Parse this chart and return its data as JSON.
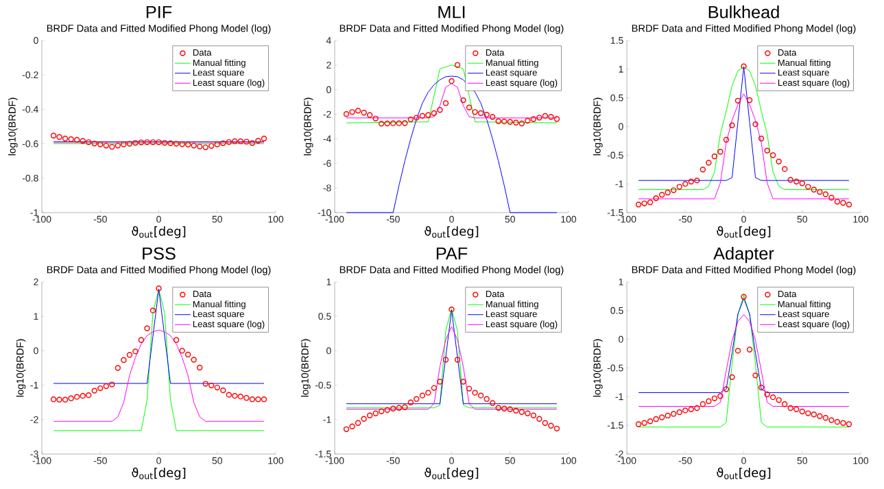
{
  "chart_data": [
    {
      "type": "line",
      "title": "PIF",
      "subtitle": "BRDF Data and Fitted Modified Phong Model (log)",
      "xlabel": "ϑ$_{out}$[deg]",
      "ylabel": "log10(BRDF)",
      "xlim": [
        -100,
        100
      ],
      "xticks": [
        -100,
        -50,
        0,
        50,
        100
      ],
      "ylim": [
        -1,
        0
      ],
      "yticks": [
        -1,
        -0.8,
        -0.6,
        -0.4,
        -0.2,
        0
      ],
      "legend": "top right",
      "series": [
        {
          "name": "Data",
          "type": "scatter",
          "marker": "circle",
          "color": "#ff0000",
          "x": [
            -90,
            -85,
            -80,
            -75,
            -70,
            -65,
            -60,
            -55,
            -50,
            -45,
            -40,
            -35,
            -30,
            -25,
            -20,
            -15,
            -10,
            -5,
            0,
            5,
            10,
            15,
            20,
            25,
            30,
            35,
            40,
            45,
            50,
            55,
            60,
            65,
            70,
            75,
            80,
            85,
            90
          ],
          "values": [
            -0.553,
            -0.561,
            -0.57,
            -0.574,
            -0.578,
            -0.584,
            -0.591,
            -0.599,
            -0.604,
            -0.611,
            -0.618,
            -0.611,
            -0.604,
            -0.6,
            -0.595,
            -0.592,
            -0.591,
            -0.591,
            -0.591,
            -0.595,
            -0.597,
            -0.6,
            -0.603,
            -0.605,
            -0.611,
            -0.616,
            -0.621,
            -0.613,
            -0.604,
            -0.597,
            -0.59,
            -0.586,
            -0.586,
            -0.588,
            -0.596,
            -0.583,
            -0.57
          ]
        },
        {
          "name": "Manual fitting",
          "color": "#00ff00",
          "x": [
            -90,
            90
          ],
          "values": [
            -0.6,
            -0.6
          ]
        },
        {
          "name": "Least square",
          "color": "#0000ff",
          "x": [
            -90,
            90
          ],
          "values": [
            -0.589,
            -0.589
          ]
        },
        {
          "name": "Least square (log)",
          "color": "#ff00ff",
          "x": [
            -90,
            90
          ],
          "values": [
            -0.591,
            -0.591
          ]
        }
      ]
    },
    {
      "type": "line",
      "title": "MLI",
      "subtitle": "BRDF Data and Fitted Modified Phong Model (log)",
      "xlabel": "ϑ$_{out}$[deg]",
      "ylabel": "log10(BRDF)",
      "xlim": [
        -100,
        100
      ],
      "xticks": [
        -100,
        -50,
        0,
        50,
        100
      ],
      "ylim": [
        -10,
        4
      ],
      "yticks": [
        -10,
        -8,
        -6,
        -4,
        -2,
        0,
        2,
        4
      ],
      "legend": "top right",
      "series": [
        {
          "name": "Data",
          "type": "scatter",
          "marker": "circle",
          "color": "#ff0000",
          "x": [
            -90,
            -85,
            -80,
            -75,
            -70,
            -65,
            -60,
            -55,
            -50,
            -45,
            -40,
            -35,
            -30,
            -25,
            -20,
            -15,
            -10,
            -5,
            0,
            5,
            10,
            15,
            20,
            25,
            30,
            35,
            40,
            45,
            50,
            55,
            60,
            65,
            70,
            75,
            80,
            85,
            90
          ],
          "values": [
            -1.98,
            -1.82,
            -1.71,
            -1.87,
            -2.07,
            -2.35,
            -2.77,
            -2.75,
            -2.73,
            -2.73,
            -2.72,
            -2.42,
            -2.28,
            -2.13,
            -2.07,
            -1.91,
            -1.65,
            -1.1,
            0.7,
            2.0,
            -0.86,
            -1.45,
            -1.82,
            -1.91,
            -2.04,
            -2.22,
            -2.57,
            -2.59,
            -2.62,
            -2.68,
            -2.75,
            -2.53,
            -2.4,
            -2.28,
            -2.13,
            -2.22,
            -2.39
          ]
        },
        {
          "name": "Manual fitting",
          "color": "#00ff00",
          "x": [
            -90,
            -20,
            -15,
            -10,
            -5,
            0,
            5,
            10,
            15,
            20,
            90
          ],
          "values": [
            -2.7,
            -2.62,
            -0.5,
            1.7,
            1.85,
            2.0,
            1.85,
            1.7,
            -0.5,
            -2.62,
            -2.7
          ]
        },
        {
          "name": "Least square",
          "color": "#0000ff",
          "x": [
            -90,
            -50,
            -45,
            -40,
            -35,
            -30,
            -25,
            -20,
            -15,
            -10,
            -5,
            0,
            5,
            10,
            15,
            20,
            25,
            30,
            35,
            40,
            45,
            50,
            90
          ],
          "values": [
            -10,
            -10,
            -7.8,
            -5.8,
            -4.0,
            -2.4,
            -1.1,
            -0.2,
            0.4,
            0.8,
            1.05,
            1.1,
            1.05,
            0.8,
            null,
            -0.2,
            -1.1,
            -2.4,
            -4.0,
            -5.8,
            -7.8,
            -10,
            -10
          ]
        },
        {
          "name": "Least square (log)",
          "color": "#ff00ff",
          "x": [
            -90,
            -20,
            -15,
            -10,
            -5,
            0,
            5,
            10,
            15,
            20,
            90
          ],
          "values": [
            -2.3,
            -2.3,
            -2.2,
            -1.3,
            0.2,
            0.5,
            0.2,
            -1.3,
            -2.2,
            -2.3,
            -2.3
          ]
        }
      ]
    },
    {
      "type": "line",
      "title": "Bulkhead",
      "subtitle": "BRDF Data and Fitted Modified Phong Model (log)",
      "xlabel": "ϑ$_{out}$[deg]",
      "ylabel": "log10(BRDF)",
      "xlim": [
        -100,
        100
      ],
      "xticks": [
        -100,
        -50,
        0,
        50,
        100
      ],
      "ylim": [
        -1.5,
        1.5
      ],
      "yticks": [
        -1.5,
        -1,
        -0.5,
        0,
        0.5,
        1,
        1.5
      ],
      "legend": "top right",
      "series": [
        {
          "name": "Data",
          "type": "scatter",
          "marker": "circle",
          "color": "#ff0000",
          "x": [
            -90,
            -85,
            -80,
            -75,
            -70,
            -65,
            -60,
            -55,
            -50,
            -45,
            -40,
            -35,
            -30,
            -25,
            -20,
            -15,
            -10,
            -5,
            0,
            5,
            10,
            15,
            20,
            25,
            30,
            35,
            40,
            45,
            50,
            55,
            60,
            65,
            70,
            75,
            80,
            85,
            90
          ],
          "values": [
            -1.36,
            -1.34,
            -1.32,
            -1.25,
            -1.19,
            -1.15,
            -1.11,
            -1.05,
            -1.0,
            -0.96,
            -0.94,
            -0.75,
            -0.63,
            -0.52,
            -0.44,
            -0.23,
            0.02,
            0.45,
            1.05,
            0.46,
            0.04,
            -0.21,
            -0.42,
            -0.5,
            -0.61,
            -0.74,
            -0.93,
            -0.96,
            -0.99,
            -1.05,
            -1.1,
            -1.14,
            -1.18,
            -1.24,
            -1.31,
            -1.33,
            -1.36
          ]
        },
        {
          "name": "Manual fitting",
          "color": "#00ff00",
          "x": [
            -90,
            -35,
            -30,
            -25,
            -20,
            -15,
            -10,
            -5,
            0,
            5,
            10,
            15,
            20,
            25,
            30,
            35,
            90
          ],
          "values": [
            -1.1,
            -1.1,
            -1.04,
            -0.79,
            -0.13,
            0.27,
            0.71,
            0.97,
            1.04,
            0.97,
            0.71,
            0.27,
            -0.13,
            -0.79,
            -1.04,
            -1.1,
            -1.1
          ]
        },
        {
          "name": "Least square",
          "color": "#0000ff",
          "x": [
            -90,
            -15,
            -10,
            -5,
            0,
            5,
            10,
            15,
            90
          ],
          "values": [
            -0.94,
            -0.94,
            -0.89,
            0.08,
            1.04,
            0.08,
            -0.89,
            -0.94,
            -0.94
          ]
        },
        {
          "name": "Least square (log)",
          "color": "#ff00ff",
          "x": [
            -90,
            -25,
            -20,
            -15,
            -10,
            -5,
            0,
            5,
            10,
            15,
            20,
            25,
            90
          ],
          "values": [
            -1.26,
            -1.26,
            -0.98,
            -0.28,
            0.11,
            0.38,
            0.57,
            0.38,
            0.11,
            -0.28,
            -0.98,
            -1.26,
            -1.26
          ]
        }
      ]
    },
    {
      "type": "line",
      "title": "PSS",
      "subtitle": "BRDF Data and Fitted Modified Phong Model (log)",
      "xlabel": "ϑ$_{out}$[deg]",
      "ylabel": "log10(BRDF)",
      "xlim": [
        -100,
        100
      ],
      "xticks": [
        -100,
        -50,
        0,
        50,
        100
      ],
      "ylim": [
        -3,
        2
      ],
      "yticks": [
        -3,
        -2,
        -1,
        0,
        1,
        2
      ],
      "legend": "top right",
      "series": [
        {
          "name": "Data",
          "type": "scatter",
          "marker": "circle",
          "color": "#ff0000",
          "x": [
            -90,
            -85,
            -80,
            -75,
            -70,
            -65,
            -60,
            -55,
            -50,
            -45,
            -40,
            -35,
            -30,
            -25,
            -20,
            -15,
            -10,
            -5,
            0,
            5,
            10,
            15,
            20,
            25,
            30,
            35,
            40,
            45,
            50,
            55,
            60,
            65,
            70,
            75,
            80,
            85,
            90
          ],
          "values": [
            -1.41,
            -1.42,
            -1.42,
            -1.38,
            -1.34,
            -1.31,
            -1.29,
            -1.16,
            -1.09,
            -1.03,
            -0.98,
            -0.5,
            -0.27,
            -0.12,
            -0.02,
            0.31,
            0.65,
            1.17,
            1.81,
            null,
            null,
            0.31,
            0.0,
            -0.11,
            -0.26,
            -0.49,
            -0.96,
            -1.01,
            -1.07,
            -1.15,
            -1.28,
            -1.31,
            -1.33,
            -1.37,
            -1.41,
            -1.41,
            -1.41
          ]
        },
        {
          "name": "Manual fitting",
          "color": "#00ff00",
          "x": [
            -90,
            -15,
            -10,
            -5,
            0,
            5,
            10,
            15,
            90
          ],
          "values": [
            -2.32,
            -2.32,
            -1.43,
            1.1,
            1.79,
            1.1,
            -1.43,
            -2.32,
            -2.32
          ]
        },
        {
          "name": "Least square",
          "color": "#0000ff",
          "x": [
            -90,
            -10,
            -5,
            0,
            5,
            10,
            90
          ],
          "values": [
            -0.95,
            -0.95,
            0.42,
            1.79,
            0.42,
            -0.95,
            -0.95
          ]
        },
        {
          "name": "Least square (log)",
          "color": "#ff00ff",
          "x": [
            -90,
            -40,
            -35,
            -30,
            -25,
            -20,
            -15,
            -10,
            -5,
            0,
            5,
            10,
            15,
            20,
            25,
            30,
            35,
            40,
            90
          ],
          "values": [
            -2.05,
            -2.05,
            -1.92,
            -1.5,
            -0.72,
            -0.2,
            0.2,
            0.44,
            0.55,
            0.6,
            0.55,
            0.44,
            0.2,
            -0.2,
            -0.72,
            -1.5,
            -1.92,
            -2.05,
            -2.05
          ]
        }
      ]
    },
    {
      "type": "line",
      "title": "PAF",
      "subtitle": "BRDF Data and Fitted Modified Phong Model (log)",
      "xlabel": "ϑ$_{out}$[deg]",
      "ylabel": "log10(BRDF)",
      "xlim": [
        -100,
        100
      ],
      "xticks": [
        -100,
        -50,
        0,
        50,
        100
      ],
      "ylim": [
        -1.5,
        1
      ],
      "yticks": [
        -1.5,
        -1,
        -0.5,
        0,
        0.5,
        1
      ],
      "legend": "top right",
      "series": [
        {
          "name": "Data",
          "type": "scatter",
          "marker": "circle",
          "color": "#ff0000",
          "x": [
            -90,
            -85,
            -80,
            -75,
            -70,
            -65,
            -60,
            -55,
            -50,
            -45,
            -40,
            -35,
            -30,
            -25,
            -20,
            -15,
            -10,
            -5,
            0,
            5,
            10,
            15,
            20,
            25,
            30,
            35,
            40,
            45,
            50,
            55,
            60,
            65,
            70,
            75,
            80,
            85,
            90
          ],
          "values": [
            -1.14,
            -1.1,
            -1.05,
            -0.99,
            -0.94,
            -0.91,
            -0.88,
            -0.86,
            -0.84,
            -0.83,
            -0.82,
            -0.75,
            -0.7,
            -0.65,
            -0.61,
            -0.54,
            -0.45,
            -0.13,
            0.6,
            -0.13,
            -0.45,
            -0.55,
            -0.61,
            -0.65,
            -0.7,
            -0.76,
            -0.83,
            -0.84,
            -0.85,
            -0.87,
            -0.89,
            -0.91,
            -0.94,
            -0.99,
            -1.05,
            -1.09,
            -1.13
          ]
        },
        {
          "name": "Manual fitting",
          "color": "#00ff00",
          "x": [
            -90,
            -15,
            -10,
            -5,
            0,
            5,
            10,
            15,
            90
          ],
          "values": [
            -0.83,
            -0.83,
            -0.79,
            0.29,
            0.61,
            0.29,
            -0.79,
            -0.83,
            -0.83
          ]
        },
        {
          "name": "Least square",
          "color": "#0000ff",
          "x": [
            -90,
            -10,
            -5,
            0,
            5,
            10,
            90
          ],
          "values": [
            -0.77,
            -0.77,
            -0.09,
            0.59,
            -0.09,
            -0.77,
            -0.77
          ]
        },
        {
          "name": "Least square (log)",
          "color": "#ff00ff",
          "x": [
            -90,
            -20,
            -15,
            -10,
            -5,
            0,
            5,
            10,
            15,
            20,
            90
          ],
          "values": [
            -0.85,
            -0.85,
            -0.77,
            -0.23,
            0.16,
            0.35,
            0.16,
            -0.23,
            -0.77,
            -0.85,
            -0.85
          ]
        }
      ]
    },
    {
      "type": "line",
      "title": "Adapter",
      "subtitle": "BRDF Data and Fitted Modified Phong Model (log)",
      "xlabel": "ϑ$_{out}$[deg]",
      "ylabel": "log10(BRDF)",
      "xlim": [
        -100,
        100
      ],
      "xticks": [
        -100,
        -50,
        0,
        50,
        100
      ],
      "ylim": [
        -2,
        1
      ],
      "yticks": [
        -2,
        -1.5,
        -1,
        -0.5,
        0,
        0.5,
        1
      ],
      "legend": "top right",
      "series": [
        {
          "name": "Data",
          "type": "scatter",
          "marker": "circle",
          "color": "#ff0000",
          "x": [
            -90,
            -85,
            -80,
            -75,
            -70,
            -65,
            -60,
            -55,
            -50,
            -45,
            -40,
            -35,
            -30,
            -25,
            -20,
            -15,
            -10,
            -5,
            0,
            5,
            10,
            15,
            20,
            25,
            30,
            35,
            40,
            45,
            50,
            55,
            60,
            65,
            70,
            75,
            80,
            85,
            90
          ],
          "values": [
            -1.48,
            -1.46,
            -1.43,
            -1.39,
            -1.36,
            -1.33,
            -1.3,
            -1.27,
            -1.24,
            -1.22,
            -1.2,
            -1.13,
            -1.08,
            -1.03,
            -0.99,
            -0.87,
            -0.66,
            -0.2,
            0.74,
            -0.18,
            -0.63,
            -0.84,
            -0.96,
            -1.01,
            -1.06,
            -1.13,
            -1.2,
            -1.22,
            -1.26,
            -1.29,
            -1.31,
            -1.34,
            -1.37,
            -1.41,
            -1.44,
            -1.46,
            -1.48
          ]
        },
        {
          "name": "Manual fitting",
          "color": "#00ff00",
          "x": [
            -90,
            -20,
            -15,
            -10,
            -5,
            0,
            5,
            10,
            15,
            20,
            90
          ],
          "values": [
            -1.53,
            -1.53,
            -1.45,
            -0.43,
            0.43,
            0.77,
            0.43,
            -0.43,
            -1.45,
            -1.53,
            -1.53
          ]
        },
        {
          "name": "Least square",
          "color": "#0000ff",
          "x": [
            -90,
            -20,
            -15,
            -10,
            -5,
            0,
            5,
            10,
            15,
            20,
            90
          ],
          "values": [
            -0.93,
            -0.93,
            -0.87,
            -0.24,
            0.44,
            0.71,
            0.44,
            -0.24,
            -0.87,
            -0.93,
            -0.93
          ]
        },
        {
          "name": "Least square (log)",
          "color": "#ff00ff",
          "x": [
            -90,
            -25,
            -20,
            -15,
            -10,
            -5,
            0,
            5,
            10,
            15,
            20,
            25,
            90
          ],
          "values": [
            -1.17,
            -1.17,
            -1.1,
            -0.55,
            -0.02,
            0.31,
            0.43,
            0.31,
            -0.02,
            -0.55,
            -1.1,
            -1.17,
            -1.17
          ]
        }
      ]
    }
  ]
}
